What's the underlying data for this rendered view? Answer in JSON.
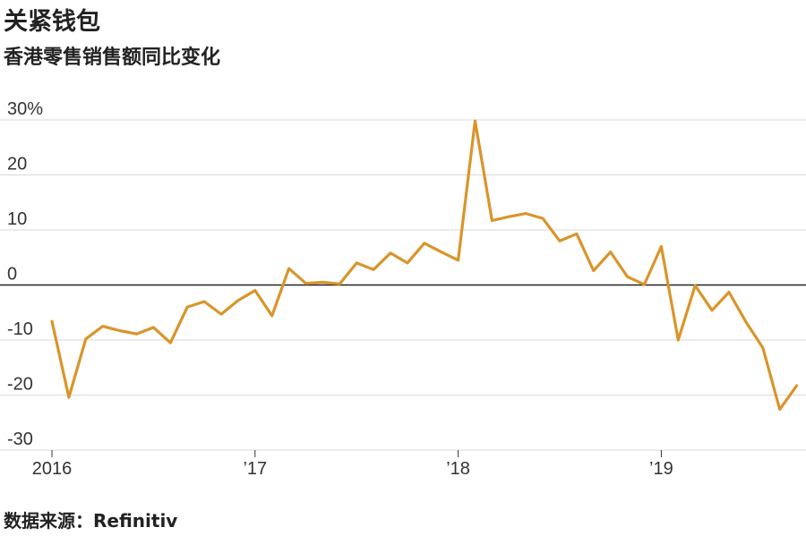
{
  "chart_data": {
    "type": "line",
    "title": "关紧钱包",
    "subtitle": "香港零售销售额同比变化",
    "source": "数据来源：Refinitiv",
    "ylim": [
      -30,
      30
    ],
    "yticks": [
      "30%",
      "20",
      "10",
      "0",
      "-10",
      "-20",
      "-30"
    ],
    "ytick_values": [
      30,
      20,
      10,
      0,
      -10,
      -20,
      -30
    ],
    "xtick_labels": [
      "2016",
      "’17",
      "’18",
      "’19"
    ],
    "xtick_positions": [
      0,
      12,
      24,
      36
    ],
    "grid": true,
    "series": [
      {
        "color": "#d9952a",
        "x": [
          "2016-01",
          "2016-02",
          "2016-03",
          "2016-04",
          "2016-05",
          "2016-06",
          "2016-07",
          "2016-08",
          "2016-09",
          "2016-10",
          "2016-11",
          "2016-12",
          "2017-01",
          "2017-02",
          "2017-03",
          "2017-04",
          "2017-05",
          "2017-06",
          "2017-07",
          "2017-08",
          "2017-09",
          "2017-10",
          "2017-11",
          "2017-12",
          "2018-01",
          "2018-02",
          "2018-03",
          "2018-04",
          "2018-05",
          "2018-06",
          "2018-07",
          "2018-08",
          "2018-09",
          "2018-10",
          "2018-11",
          "2018-12",
          "2019-01",
          "2019-02",
          "2019-03",
          "2019-04",
          "2019-05",
          "2019-06",
          "2019-07",
          "2019-08",
          "2019-09"
        ],
        "values": [
          -6.6,
          -20.4,
          -9.8,
          -7.5,
          -8.3,
          -8.9,
          -7.7,
          -10.5,
          -4.0,
          -3.0,
          -5.3,
          -2.8,
          -1.0,
          -5.6,
          3.0,
          0.3,
          0.5,
          0.2,
          4.0,
          2.8,
          5.8,
          4.0,
          7.6,
          6.0,
          4.5,
          29.8,
          11.7,
          12.4,
          13.0,
          12.1,
          8.0,
          9.3,
          2.6,
          6.0,
          1.5,
          0.1,
          7.0,
          -10.0,
          -0.1,
          -4.6,
          -1.3,
          -6.7,
          -11.4,
          -22.6,
          -18.3
        ]
      }
    ]
  }
}
